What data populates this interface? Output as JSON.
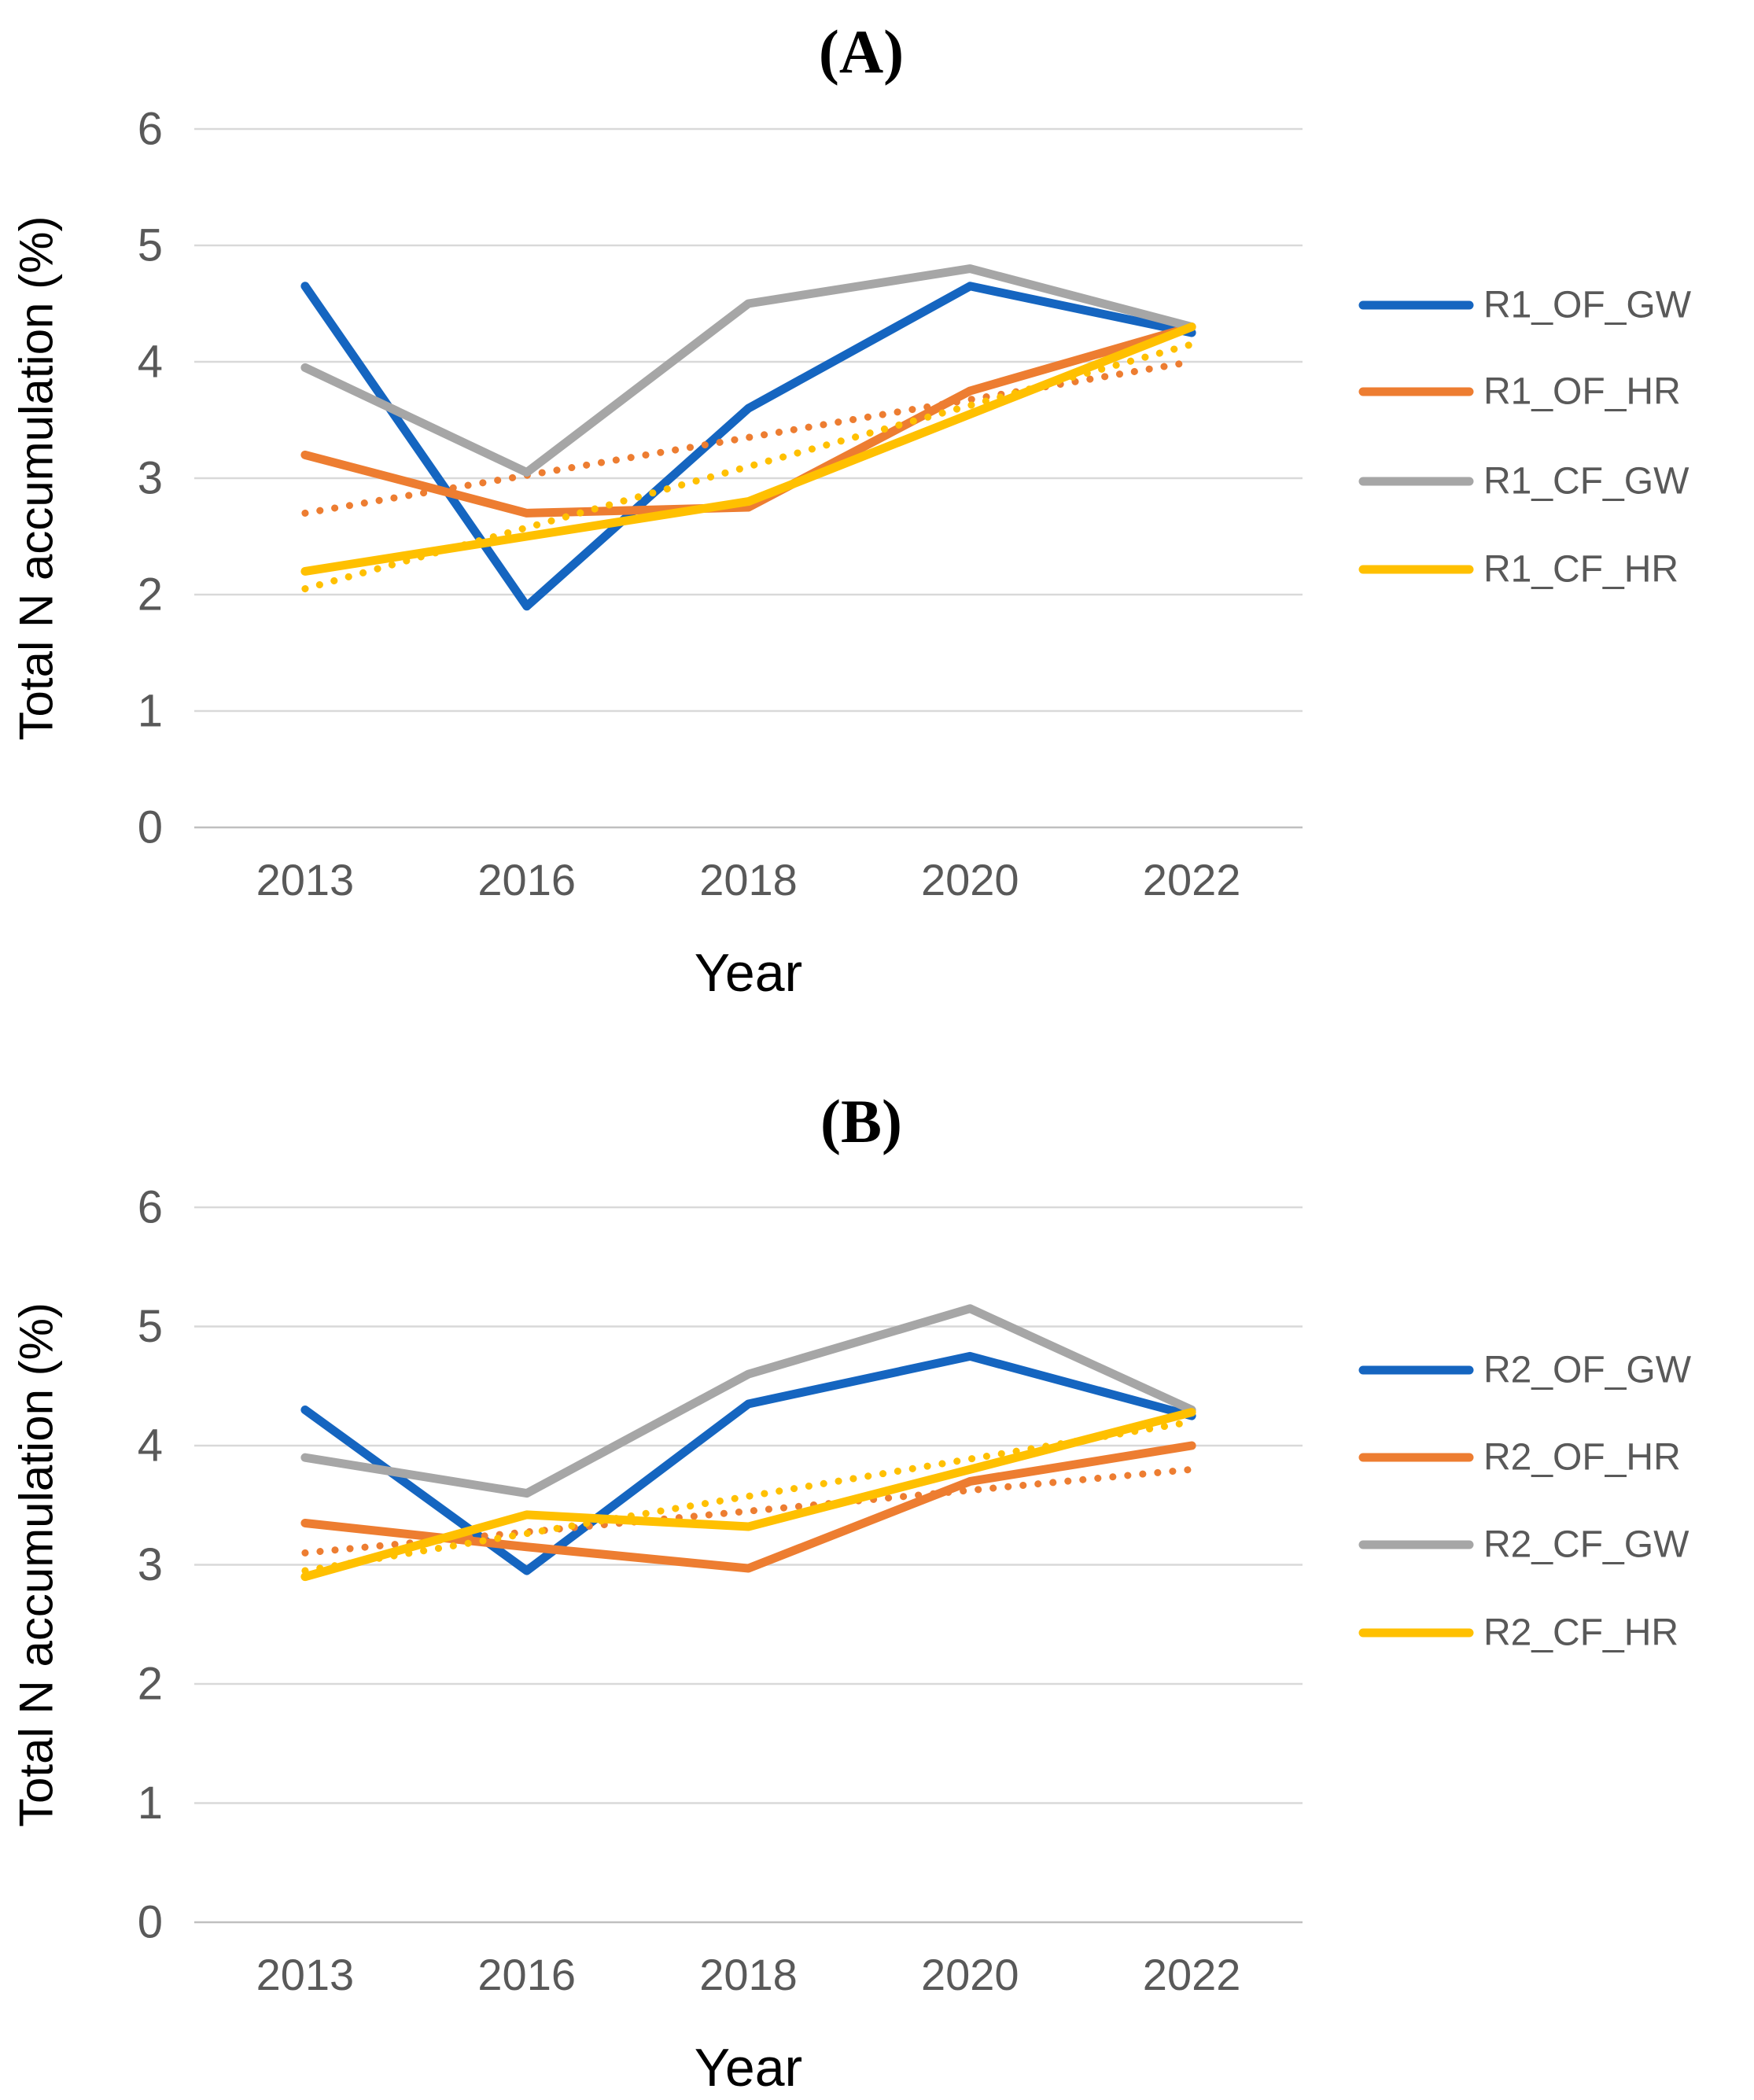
{
  "figure": {
    "colors": {
      "background": "#FFFFFF",
      "grid": "#D9D9D9",
      "axis_line": "#BFBFBF",
      "tick_text": "#595959",
      "axis_title_text": "#000000",
      "legend_text": "#595959",
      "title_text": "#000000"
    }
  },
  "chart_data": [
    {
      "type": "line",
      "panel_id": "A",
      "title": "(A)",
      "xlabel": "Year",
      "ylabel": "Total N accumulation (%)",
      "categories": [
        "2013",
        "2016",
        "2018",
        "2020",
        "2022"
      ],
      "y_ticks": [
        0,
        1,
        2,
        3,
        4,
        5,
        6
      ],
      "ylim": [
        0,
        6
      ],
      "grid": true,
      "legend_position": "right",
      "series": [
        {
          "name": "R1_OF_GW",
          "color": "#1565C0",
          "values": [
            4.65,
            1.9,
            3.6,
            4.65,
            4.25
          ]
        },
        {
          "name": "R1_OF_HR",
          "color": "#ED7D31",
          "values": [
            3.2,
            2.7,
            2.75,
            3.75,
            4.3
          ]
        },
        {
          "name": "R1_CF_GW",
          "color": "#A6A6A6",
          "values": [
            3.95,
            3.05,
            4.5,
            4.8,
            4.3
          ]
        },
        {
          "name": "R1_CF_HR",
          "color": "#FFC000",
          "values": [
            2.2,
            2.5,
            2.8,
            3.55,
            4.3
          ]
        }
      ],
      "trendlines": [
        {
          "for": "R1_OF_HR",
          "style": "dotted",
          "color": "#ED7D31",
          "start": 2.7,
          "end": 4.0
        },
        {
          "for": "R1_CF_HR",
          "style": "dotted",
          "color": "#FFC000",
          "start": 2.05,
          "end": 4.15
        }
      ],
      "legend": [
        "R1_OF_GW",
        "R1_OF_HR",
        "R1_CF_GW",
        "R1_CF_HR"
      ]
    },
    {
      "type": "line",
      "panel_id": "B",
      "title": "(B)",
      "xlabel": "Year",
      "ylabel": "Total N accumulation (%)",
      "categories": [
        "2013",
        "2016",
        "2018",
        "2020",
        "2022"
      ],
      "y_ticks": [
        0,
        1,
        2,
        3,
        4,
        5,
        6
      ],
      "ylim": [
        0,
        6
      ],
      "grid": true,
      "legend_position": "right",
      "series": [
        {
          "name": "R2_OF_GW",
          "color": "#1565C0",
          "values": [
            4.3,
            2.95,
            4.35,
            4.75,
            4.25
          ]
        },
        {
          "name": "R2_OF_HR",
          "color": "#ED7D31",
          "values": [
            3.35,
            3.15,
            2.97,
            3.7,
            4.0
          ]
        },
        {
          "name": "R2_CF_GW",
          "color": "#A6A6A6",
          "values": [
            3.9,
            3.6,
            4.6,
            5.15,
            4.3
          ]
        },
        {
          "name": "R2_CF_HR",
          "color": "#FFC000",
          "values": [
            2.9,
            3.42,
            3.32,
            3.8,
            4.28
          ]
        }
      ],
      "trendlines": [
        {
          "for": "R2_OF_HR",
          "style": "dotted",
          "color": "#ED7D31",
          "start": 3.1,
          "end": 3.8
        },
        {
          "for": "R2_CF_HR",
          "style": "dotted",
          "color": "#FFC000",
          "start": 2.95,
          "end": 4.2
        }
      ],
      "legend": [
        "R2_OF_GW",
        "R2_OF_HR",
        "R2_CF_GW",
        "R2_CF_HR"
      ]
    }
  ]
}
